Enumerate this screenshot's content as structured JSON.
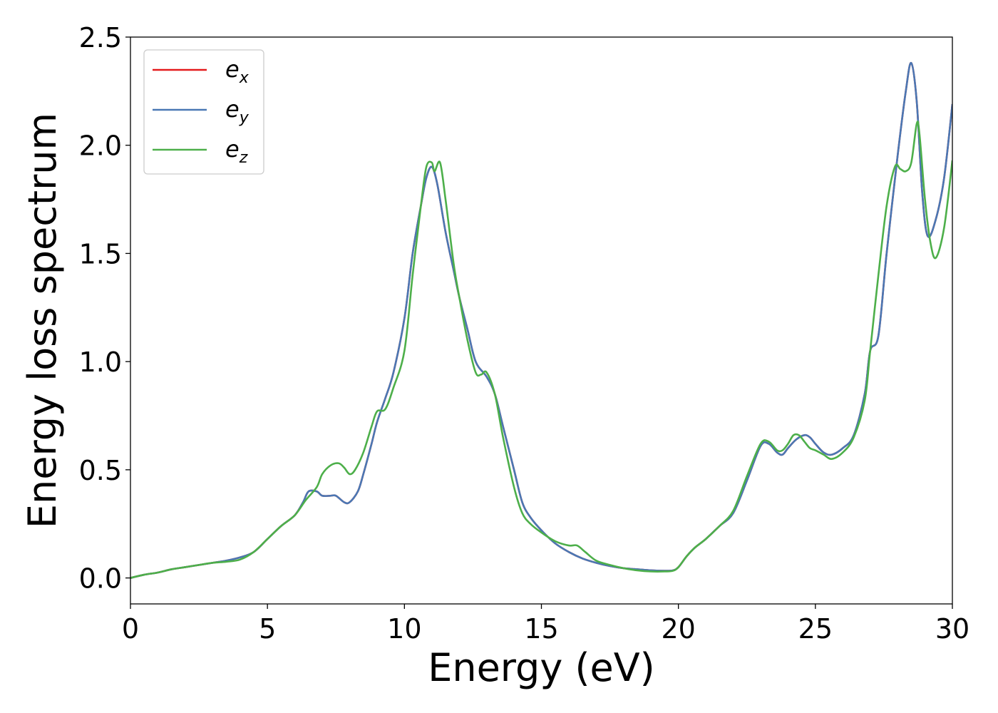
{
  "chart_data": {
    "type": "line",
    "title": "",
    "xlabel": "Energy (eV)",
    "ylabel": "Energy loss spectrum",
    "xlim": [
      0,
      30
    ],
    "ylim": [
      -0.12,
      2.5
    ],
    "xticks": [
      0,
      5,
      10,
      15,
      20,
      25,
      30
    ],
    "xtick_labels": [
      "0",
      "5",
      "10",
      "15",
      "20",
      "25",
      "30"
    ],
    "yticks": [
      0.0,
      0.5,
      1.0,
      1.5,
      2.0,
      2.5
    ],
    "ytick_labels": [
      "0.0",
      "0.5",
      "1.0",
      "1.5",
      "2.0",
      "2.5"
    ],
    "grid": false,
    "legend_position": "top-left",
    "series": [
      {
        "name": "e_x",
        "legend_main": "e",
        "legend_sub": "x",
        "color": "#e41a1c",
        "x": [
          0,
          0.5,
          1,
          1.5,
          2,
          2.5,
          3,
          3.5,
          4,
          4.5,
          5,
          5.5,
          6,
          6.3,
          6.5,
          6.8,
          7,
          7.3,
          7.5,
          7.8,
          8,
          8.3,
          8.5,
          8.8,
          9,
          9.3,
          9.6,
          10,
          10.3,
          10.6,
          10.8,
          11,
          11.2,
          11.5,
          11.8,
          12,
          12.3,
          12.6,
          13,
          13.3,
          13.6,
          14,
          14.3,
          14.6,
          15,
          15.5,
          16,
          16.5,
          17,
          17.5,
          18,
          18.5,
          19,
          19.5,
          19.8,
          20,
          20.3,
          20.6,
          21,
          21.5,
          22,
          22.5,
          23,
          23.3,
          23.6,
          23.8,
          24,
          24.3,
          24.6,
          24.8,
          25,
          25.3,
          25.6,
          26,
          26.4,
          26.8,
          27,
          27.3,
          27.6,
          28,
          28.3,
          28.5,
          28.7,
          28.9,
          29.1,
          29.4,
          29.7,
          30
        ],
        "y": [
          0,
          0.015,
          0.025,
          0.04,
          0.05,
          0.06,
          0.07,
          0.08,
          0.095,
          0.12,
          0.18,
          0.24,
          0.29,
          0.35,
          0.4,
          0.4,
          0.38,
          0.38,
          0.38,
          0.35,
          0.35,
          0.4,
          0.48,
          0.62,
          0.72,
          0.83,
          0.95,
          1.2,
          1.5,
          1.72,
          1.85,
          1.9,
          1.82,
          1.6,
          1.42,
          1.3,
          1.15,
          1.0,
          0.93,
          0.85,
          0.7,
          0.5,
          0.35,
          0.28,
          0.22,
          0.16,
          0.12,
          0.09,
          0.07,
          0.055,
          0.045,
          0.04,
          0.035,
          0.033,
          0.035,
          0.05,
          0.1,
          0.14,
          0.18,
          0.24,
          0.3,
          0.45,
          0.61,
          0.62,
          0.58,
          0.57,
          0.6,
          0.64,
          0.66,
          0.65,
          0.62,
          0.58,
          0.57,
          0.6,
          0.66,
          0.85,
          1.05,
          1.12,
          1.5,
          1.95,
          2.25,
          2.38,
          2.2,
          1.78,
          1.58,
          1.66,
          1.85,
          2.19
        ]
      },
      {
        "name": "e_y",
        "legend_main": "e",
        "legend_sub": "y",
        "color": "#4a78b4",
        "x": [
          0,
          0.5,
          1,
          1.5,
          2,
          2.5,
          3,
          3.5,
          4,
          4.5,
          5,
          5.5,
          6,
          6.3,
          6.5,
          6.8,
          7,
          7.3,
          7.5,
          7.8,
          8,
          8.3,
          8.5,
          8.8,
          9,
          9.3,
          9.6,
          10,
          10.3,
          10.6,
          10.8,
          11,
          11.2,
          11.5,
          11.8,
          12,
          12.3,
          12.6,
          13,
          13.3,
          13.6,
          14,
          14.3,
          14.6,
          15,
          15.5,
          16,
          16.5,
          17,
          17.5,
          18,
          18.5,
          19,
          19.5,
          19.8,
          20,
          20.3,
          20.6,
          21,
          21.5,
          22,
          22.5,
          23,
          23.3,
          23.6,
          23.8,
          24,
          24.3,
          24.6,
          24.8,
          25,
          25.3,
          25.6,
          26,
          26.4,
          26.8,
          27,
          27.3,
          27.6,
          28,
          28.3,
          28.5,
          28.7,
          28.9,
          29.1,
          29.4,
          29.7,
          30
        ],
        "y": [
          0,
          0.015,
          0.025,
          0.04,
          0.05,
          0.06,
          0.07,
          0.08,
          0.095,
          0.12,
          0.18,
          0.24,
          0.29,
          0.35,
          0.4,
          0.4,
          0.38,
          0.38,
          0.38,
          0.35,
          0.35,
          0.4,
          0.48,
          0.62,
          0.72,
          0.83,
          0.95,
          1.2,
          1.5,
          1.72,
          1.85,
          1.9,
          1.82,
          1.6,
          1.42,
          1.3,
          1.15,
          1.0,
          0.93,
          0.85,
          0.7,
          0.5,
          0.35,
          0.28,
          0.22,
          0.16,
          0.12,
          0.09,
          0.07,
          0.055,
          0.045,
          0.04,
          0.035,
          0.033,
          0.035,
          0.05,
          0.1,
          0.14,
          0.18,
          0.24,
          0.3,
          0.45,
          0.61,
          0.62,
          0.58,
          0.57,
          0.6,
          0.64,
          0.66,
          0.65,
          0.62,
          0.58,
          0.57,
          0.6,
          0.66,
          0.85,
          1.05,
          1.12,
          1.5,
          1.95,
          2.25,
          2.38,
          2.2,
          1.78,
          1.58,
          1.66,
          1.85,
          2.19
        ]
      },
      {
        "name": "e_z",
        "legend_main": "e",
        "legend_sub": "z",
        "color": "#4daf4a",
        "x": [
          0,
          0.5,
          1,
          1.5,
          2,
          2.5,
          3,
          3.5,
          4,
          4.5,
          5,
          5.5,
          6,
          6.4,
          6.8,
          7,
          7.3,
          7.6,
          7.8,
          8,
          8.2,
          8.5,
          8.8,
          9,
          9.3,
          9.6,
          10,
          10.3,
          10.6,
          10.8,
          11,
          11.1,
          11.3,
          11.5,
          11.8,
          12,
          12.3,
          12.6,
          12.8,
          13,
          13.3,
          13.6,
          14,
          14.3,
          14.6,
          15,
          15.5,
          16,
          16.3,
          16.6,
          17,
          17.5,
          18,
          18.5,
          19,
          19.5,
          19.8,
          20,
          20.3,
          20.6,
          21,
          21.5,
          22,
          22.5,
          23,
          23.3,
          23.6,
          23.8,
          24,
          24.2,
          24.4,
          24.6,
          24.8,
          25,
          25.3,
          25.6,
          26,
          26.4,
          26.8,
          27,
          27.3,
          27.6,
          27.9,
          28.1,
          28.3,
          28.5,
          28.7,
          28.8,
          29,
          29.2,
          29.4,
          29.7,
          30
        ],
        "y": [
          0,
          0.015,
          0.025,
          0.04,
          0.05,
          0.06,
          0.07,
          0.075,
          0.085,
          0.12,
          0.18,
          0.24,
          0.29,
          0.36,
          0.42,
          0.48,
          0.52,
          0.53,
          0.51,
          0.48,
          0.5,
          0.58,
          0.7,
          0.77,
          0.78,
          0.88,
          1.05,
          1.4,
          1.72,
          1.9,
          1.92,
          1.88,
          1.92,
          1.75,
          1.45,
          1.3,
          1.1,
          0.95,
          0.94,
          0.95,
          0.85,
          0.65,
          0.42,
          0.3,
          0.25,
          0.21,
          0.17,
          0.15,
          0.15,
          0.12,
          0.08,
          0.06,
          0.045,
          0.035,
          0.03,
          0.03,
          0.033,
          0.05,
          0.1,
          0.14,
          0.18,
          0.24,
          0.31,
          0.47,
          0.62,
          0.63,
          0.59,
          0.59,
          0.62,
          0.66,
          0.66,
          0.63,
          0.6,
          0.59,
          0.57,
          0.55,
          0.58,
          0.65,
          0.82,
          1.05,
          1.4,
          1.72,
          1.9,
          1.89,
          1.88,
          1.92,
          2.1,
          2.05,
          1.75,
          1.55,
          1.48,
          1.62,
          1.93
        ]
      }
    ]
  }
}
